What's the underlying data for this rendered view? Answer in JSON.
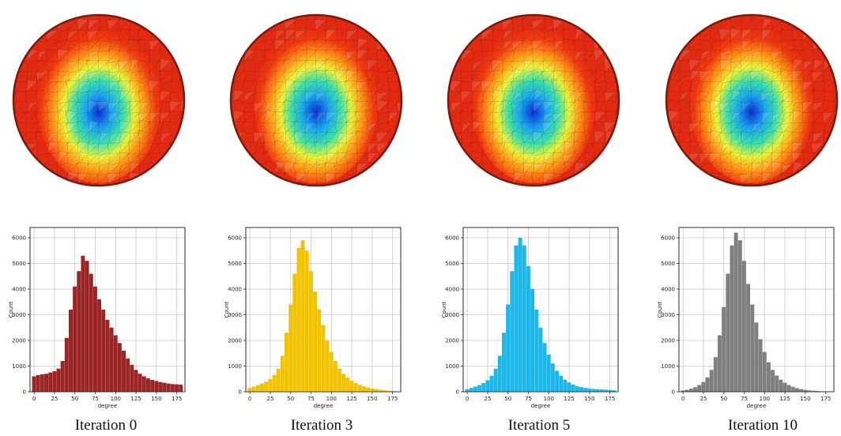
{
  "figure": {
    "panels": [
      {
        "caption": "Iteration 0",
        "color": "#9b2424"
      },
      {
        "caption": "Iteration 3",
        "color": "#f2c300"
      },
      {
        "caption": "Iteration 5",
        "color": "#1cb8ea"
      },
      {
        "caption": "Iteration 10",
        "color": "#7f7f7f"
      }
    ]
  },
  "chart_data": [
    {
      "type": "bar",
      "title": "",
      "xlabel": "degree",
      "ylabel": "Count",
      "xlim": [
        -5,
        185
      ],
      "ylim": [
        0,
        6400
      ],
      "xticks": [
        "0",
        "25",
        "50",
        "75",
        "100",
        "125",
        "150",
        "175"
      ],
      "yticks": [
        "0",
        "1000",
        "2000",
        "3000",
        "4000",
        "5000",
        "6000"
      ],
      "grid": true,
      "bin_centers": [
        0,
        5,
        10,
        15,
        20,
        25,
        30,
        35,
        40,
        45,
        50,
        55,
        60,
        65,
        70,
        75,
        80,
        85,
        90,
        95,
        100,
        105,
        110,
        115,
        120,
        125,
        130,
        135,
        140,
        145,
        150,
        155,
        160,
        165,
        170,
        175,
        180
      ],
      "values": [
        600,
        650,
        680,
        700,
        750,
        800,
        900,
        1200,
        2100,
        3200,
        4100,
        4700,
        5300,
        5100,
        4600,
        4100,
        3600,
        3200,
        2800,
        2500,
        2200,
        1900,
        1600,
        1300,
        1050,
        850,
        700,
        600,
        520,
        460,
        420,
        380,
        350,
        320,
        300,
        290,
        280
      ]
    },
    {
      "type": "bar",
      "title": "",
      "xlabel": "degree",
      "ylabel": "Count",
      "xlim": [
        -5,
        185
      ],
      "ylim": [
        0,
        6400
      ],
      "xticks": [
        "0",
        "25",
        "50",
        "75",
        "100",
        "125",
        "150",
        "175"
      ],
      "yticks": [
        "0",
        "1000",
        "2000",
        "3000",
        "4000",
        "5000",
        "6000"
      ],
      "grid": true,
      "bin_centers": [
        0,
        5,
        10,
        15,
        20,
        25,
        30,
        35,
        40,
        45,
        50,
        55,
        60,
        65,
        70,
        75,
        80,
        85,
        90,
        95,
        100,
        105,
        110,
        115,
        120,
        125,
        130,
        135,
        140,
        145,
        150,
        155,
        160,
        165,
        170,
        175,
        180
      ],
      "values": [
        150,
        200,
        260,
        320,
        400,
        500,
        650,
        900,
        1400,
        2300,
        3400,
        4600,
        5600,
        5900,
        5500,
        4700,
        3900,
        3200,
        2600,
        2000,
        1550,
        1200,
        900,
        700,
        550,
        430,
        340,
        270,
        210,
        170,
        130,
        100,
        80,
        60,
        45,
        30,
        20
      ]
    },
    {
      "type": "bar",
      "title": "",
      "xlabel": "degree",
      "ylabel": "Count",
      "xlim": [
        -5,
        185
      ],
      "ylim": [
        0,
        6400
      ],
      "xticks": [
        "0",
        "25",
        "50",
        "75",
        "100",
        "125",
        "150",
        "175"
      ],
      "yticks": [
        "0",
        "1000",
        "2000",
        "3000",
        "4000",
        "5000",
        "6000"
      ],
      "grid": true,
      "bin_centers": [
        0,
        5,
        10,
        15,
        20,
        25,
        30,
        35,
        40,
        45,
        50,
        55,
        60,
        65,
        70,
        75,
        80,
        85,
        90,
        95,
        100,
        105,
        110,
        115,
        120,
        125,
        130,
        135,
        140,
        145,
        150,
        155,
        160,
        165,
        170,
        175,
        180
      ],
      "values": [
        100,
        150,
        200,
        260,
        340,
        450,
        620,
        900,
        1400,
        2300,
        3400,
        4700,
        5700,
        6000,
        5700,
        4900,
        4000,
        3200,
        2500,
        1900,
        1450,
        1100,
        820,
        620,
        470,
        360,
        280,
        220,
        180,
        150,
        130,
        110,
        100,
        90,
        80,
        70,
        60
      ]
    },
    {
      "type": "bar",
      "title": "",
      "xlabel": "degree",
      "ylabel": "Count",
      "xlim": [
        -5,
        185
      ],
      "ylim": [
        0,
        6400
      ],
      "xticks": [
        "0",
        "25",
        "50",
        "75",
        "100",
        "125",
        "150",
        "175"
      ],
      "yticks": [
        "0",
        "1000",
        "2000",
        "3000",
        "4000",
        "5000",
        "6000"
      ],
      "grid": true,
      "bin_centers": [
        0,
        5,
        10,
        15,
        20,
        25,
        30,
        35,
        40,
        45,
        50,
        55,
        60,
        65,
        70,
        75,
        80,
        85,
        90,
        95,
        100,
        105,
        110,
        115,
        120,
        125,
        130,
        135,
        140,
        145,
        150,
        155,
        160,
        165,
        170,
        175,
        180
      ],
      "values": [
        50,
        80,
        120,
        180,
        260,
        380,
        560,
        850,
        1350,
        2200,
        3300,
        4600,
        5700,
        6200,
        5900,
        5100,
        4200,
        3400,
        2700,
        2050,
        1550,
        1150,
        850,
        630,
        470,
        350,
        260,
        190,
        140,
        100,
        75,
        55,
        40,
        30,
        20,
        12,
        8
      ]
    }
  ]
}
